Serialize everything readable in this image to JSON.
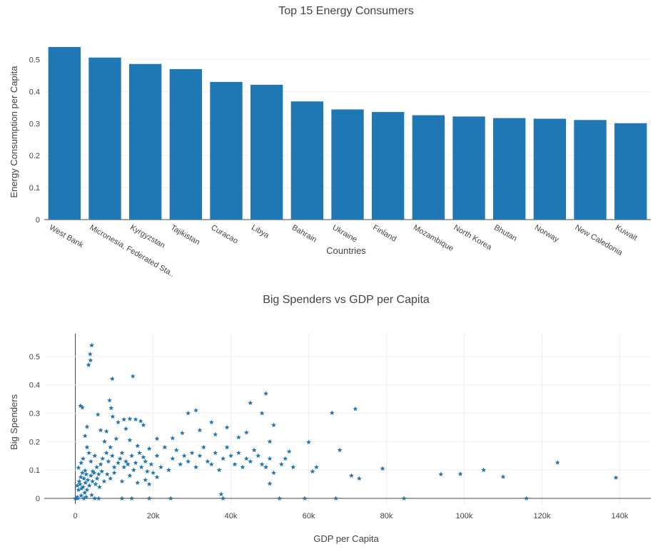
{
  "chart_data": [
    {
      "type": "bar",
      "title": "Top 15 Energy Consumers",
      "xlabel": "Countries",
      "ylabel": "Energy Consumption per Capita",
      "categories": [
        "West Bank",
        "Micronesia, Federated Sta...",
        "Kyrgyzstan",
        "Tajikistan",
        "Curacao",
        "Libya",
        "Bahrain",
        "Ukraine",
        "Finland",
        "Mozambique",
        "North Korea",
        "Bhutan",
        "Norway",
        "New Caledonia",
        "Kuwait"
      ],
      "values": [
        0.539,
        0.506,
        0.486,
        0.47,
        0.43,
        0.421,
        0.369,
        0.344,
        0.336,
        0.326,
        0.322,
        0.317,
        0.315,
        0.311,
        0.301
      ],
      "ylim": [
        0,
        0.57
      ],
      "yticks": [
        0,
        0.1,
        0.2,
        0.3,
        0.4,
        0.5
      ],
      "ytick_labels": [
        "0",
        "0.1",
        "0.2",
        "0.3",
        "0.4",
        "0.5"
      ],
      "color": "#1f77b4",
      "grid": true
    },
    {
      "type": "scatter",
      "title": "Big Spenders vs GDP per Capita",
      "xlabel": "GDP per Capita",
      "ylabel": "Big Spenders",
      "xlim": [
        -8000,
        148000
      ],
      "ylim": [
        -0.02,
        0.58
      ],
      "xticks": [
        0,
        20000,
        40000,
        60000,
        80000,
        100000,
        120000,
        140000
      ],
      "xtick_labels": [
        "0",
        "20k",
        "40k",
        "60k",
        "80k",
        "100k",
        "120k",
        "140k"
      ],
      "yticks": [
        0,
        0.1,
        0.2,
        0.3,
        0.4,
        0.5
      ],
      "ytick_labels": [
        "0",
        "0.1",
        "0.2",
        "0.3",
        "0.4",
        "0.5"
      ],
      "marker": "star",
      "color": "#1f77b4",
      "grid": true,
      "points": [
        [
          4200,
          0.539
        ],
        [
          3800,
          0.508
        ],
        [
          3900,
          0.486
        ],
        [
          3400,
          0.47
        ],
        [
          9500,
          0.421
        ],
        [
          14800,
          0.43
        ],
        [
          1300,
          0.326
        ],
        [
          1800,
          0.32
        ],
        [
          8800,
          0.345
        ],
        [
          9200,
          0.318
        ],
        [
          49000,
          0.369
        ],
        [
          45000,
          0.336
        ],
        [
          66000,
          0.301
        ],
        [
          72000,
          0.315
        ],
        [
          31000,
          0.31
        ],
        [
          48000,
          0.3
        ],
        [
          11000,
          0.268
        ],
        [
          12500,
          0.278
        ],
        [
          14000,
          0.28
        ],
        [
          15500,
          0.278
        ],
        [
          17500,
          0.258
        ],
        [
          29000,
          0.3
        ],
        [
          35000,
          0.268
        ],
        [
          39000,
          0.25
        ],
        [
          44000,
          0.232
        ],
        [
          51000,
          0.258
        ],
        [
          3000,
          0.252
        ],
        [
          6500,
          0.24
        ],
        [
          8000,
          0.236
        ],
        [
          13000,
          0.245
        ],
        [
          21000,
          0.21
        ],
        [
          25000,
          0.212
        ],
        [
          27500,
          0.23
        ],
        [
          32000,
          0.24
        ],
        [
          36000,
          0.225
        ],
        [
          42000,
          0.215
        ],
        [
          50000,
          0.2
        ],
        [
          55000,
          0.165
        ],
        [
          60000,
          0.198
        ],
        [
          1500,
          0.125
        ],
        [
          2000,
          0.14
        ],
        [
          2500,
          0.22
        ],
        [
          3000,
          0.18
        ],
        [
          3500,
          0.16
        ],
        [
          4000,
          0.13
        ],
        [
          4500,
          0.095
        ],
        [
          5000,
          0.15
        ],
        [
          5500,
          0.11
        ],
        [
          6000,
          0.085
        ],
        [
          6500,
          0.12
        ],
        [
          7000,
          0.14
        ],
        [
          7500,
          0.2
        ],
        [
          8000,
          0.16
        ],
        [
          8500,
          0.13
        ],
        [
          9000,
          0.18
        ],
        [
          9500,
          0.15
        ],
        [
          10000,
          0.11
        ],
        [
          10500,
          0.21
        ],
        [
          11000,
          0.125
        ],
        [
          11500,
          0.14
        ],
        [
          12000,
          0.16
        ],
        [
          12500,
          0.11
        ],
        [
          13000,
          0.13
        ],
        [
          13500,
          0.12
        ],
        [
          14000,
          0.205
        ],
        [
          14500,
          0.15
        ],
        [
          15000,
          0.1
        ],
        [
          15500,
          0.125
        ],
        [
          16000,
          0.185
        ],
        [
          16500,
          0.16
        ],
        [
          17000,
          0.11
        ],
        [
          17500,
          0.145
        ],
        [
          18000,
          0.13
        ],
        [
          18500,
          0.095
        ],
        [
          19000,
          0.175
        ],
        [
          19500,
          0.12
        ],
        [
          20000,
          0.09
        ],
        [
          21000,
          0.15
        ],
        [
          22000,
          0.11
        ],
        [
          23000,
          0.18
        ],
        [
          24000,
          0.1
        ],
        [
          25000,
          0.14
        ],
        [
          26000,
          0.17
        ],
        [
          27000,
          0.12
        ],
        [
          28000,
          0.15
        ],
        [
          29000,
          0.13
        ],
        [
          30000,
          0.16
        ],
        [
          31000,
          0.11
        ],
        [
          32000,
          0.15
        ],
        [
          33000,
          0.18
        ],
        [
          34000,
          0.13
        ],
        [
          35000,
          0.12
        ],
        [
          36000,
          0.16
        ],
        [
          37000,
          0.1
        ],
        [
          38000,
          0.14
        ],
        [
          39000,
          0.18
        ],
        [
          40000,
          0.15
        ],
        [
          41000,
          0.12
        ],
        [
          42000,
          0.16
        ],
        [
          43000,
          0.11
        ],
        [
          44000,
          0.14
        ],
        [
          45000,
          0.13
        ],
        [
          46000,
          0.17
        ],
        [
          47000,
          0.15
        ],
        [
          48000,
          0.12
        ],
        [
          49000,
          0.11
        ],
        [
          50000,
          0.14
        ],
        [
          51000,
          0.09
        ],
        [
          53000,
          0.12
        ],
        [
          54000,
          0.14
        ],
        [
          56000,
          0.11
        ],
        [
          61000,
          0.095
        ],
        [
          62000,
          0.11
        ],
        [
          68000,
          0.17
        ],
        [
          71000,
          0.08
        ],
        [
          73000,
          0.07
        ],
        [
          79000,
          0.105
        ],
        [
          94000,
          0.085
        ],
        [
          99000,
          0.086
        ],
        [
          105000,
          0.1
        ],
        [
          110000,
          0.076
        ],
        [
          124000,
          0.126
        ],
        [
          139000,
          0.073
        ],
        [
          500,
          0.045
        ],
        [
          800,
          0.03
        ],
        [
          1000,
          0.06
        ],
        [
          1200,
          0.05
        ],
        [
          1400,
          0.075
        ],
        [
          1600,
          0.035
        ],
        [
          1800,
          0.09
        ],
        [
          2000,
          0.04
        ],
        [
          2200,
          0.07
        ],
        [
          2400,
          0.02
        ],
        [
          2600,
          0.055
        ],
        [
          2800,
          0.085
        ],
        [
          3000,
          0.03
        ],
        [
          3200,
          0.065
        ],
        [
          3600,
          0.045
        ],
        [
          4000,
          0.08
        ],
        [
          4400,
          0.06
        ],
        [
          4800,
          0.09
        ],
        [
          5200,
          0.05
        ],
        [
          5600,
          0.07
        ],
        [
          6200,
          0.04
        ],
        [
          6800,
          0.095
        ],
        [
          7400,
          0.06
        ],
        [
          8200,
          0.085
        ],
        [
          9000,
          0.07
        ],
        [
          10000,
          0.09
        ],
        [
          12000,
          0.06
        ],
        [
          14000,
          0.08
        ],
        [
          16000,
          0.055
        ],
        [
          18000,
          0.065
        ],
        [
          19000,
          0.05
        ],
        [
          21000,
          0.075
        ],
        [
          37500,
          0.015
        ],
        [
          50000,
          0.052
        ],
        [
          800,
          0.108
        ],
        [
          2500,
          0.098
        ],
        [
          5800,
          0.295
        ],
        [
          9600,
          0.288
        ],
        [
          16800,
          0.272
        ],
        [
          0,
          0.0
        ],
        [
          600,
          0.0
        ],
        [
          2200,
          0.0
        ],
        [
          5000,
          0.0
        ],
        [
          6000,
          0.0
        ],
        [
          12000,
          0.0
        ],
        [
          14500,
          0.0
        ],
        [
          19000,
          0.0
        ],
        [
          24500,
          0.0
        ],
        [
          38000,
          0.0
        ],
        [
          52500,
          0.0
        ],
        [
          59000,
          0.0
        ],
        [
          67000,
          0.0
        ],
        [
          84500,
          0.0
        ],
        [
          116000,
          0.0
        ],
        [
          500,
          0.005
        ],
        [
          1500,
          0.01
        ],
        [
          2800,
          0.005
        ],
        [
          4200,
          0.012
        ]
      ]
    }
  ]
}
